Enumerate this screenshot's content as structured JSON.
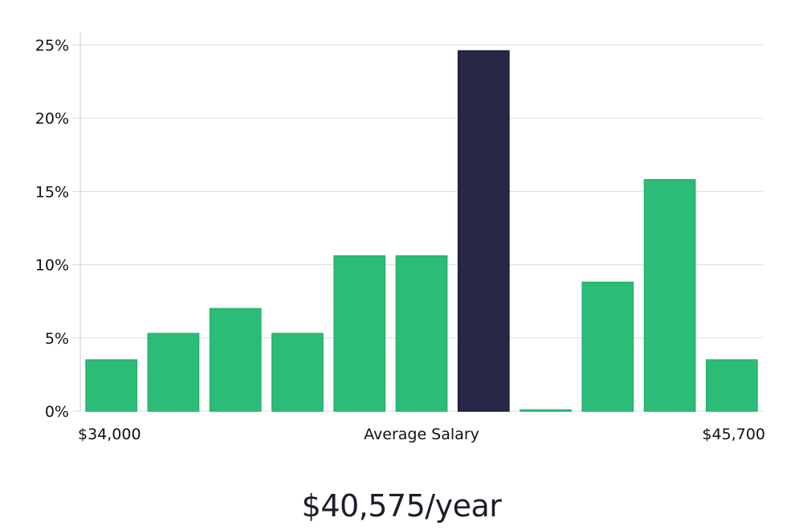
{
  "chart_data": {
    "type": "bar",
    "categories": [
      "$34,000",
      "",
      "",
      "",
      "",
      "",
      "",
      "",
      "",
      "",
      "$45,700"
    ],
    "values": [
      3.5,
      5.3,
      7.0,
      5.3,
      10.6,
      10.6,
      24.6,
      0,
      8.8,
      15.8,
      3.5
    ],
    "highlight_index": 6,
    "x_labels": {
      "left": "$34,000",
      "center": "Average Salary",
      "right": "$45,700"
    },
    "ylim": [
      0,
      25
    ],
    "y_ticks": [
      0,
      5,
      10,
      15,
      20,
      25
    ],
    "y_tick_suffix": "%",
    "grid": true,
    "colors": {
      "bar": "#2bbd77",
      "bar_highlight": "#272746",
      "grid": "#dddddd",
      "axis": "#cccccc",
      "text": "#111111"
    }
  },
  "average_salary": "$40,575/year"
}
